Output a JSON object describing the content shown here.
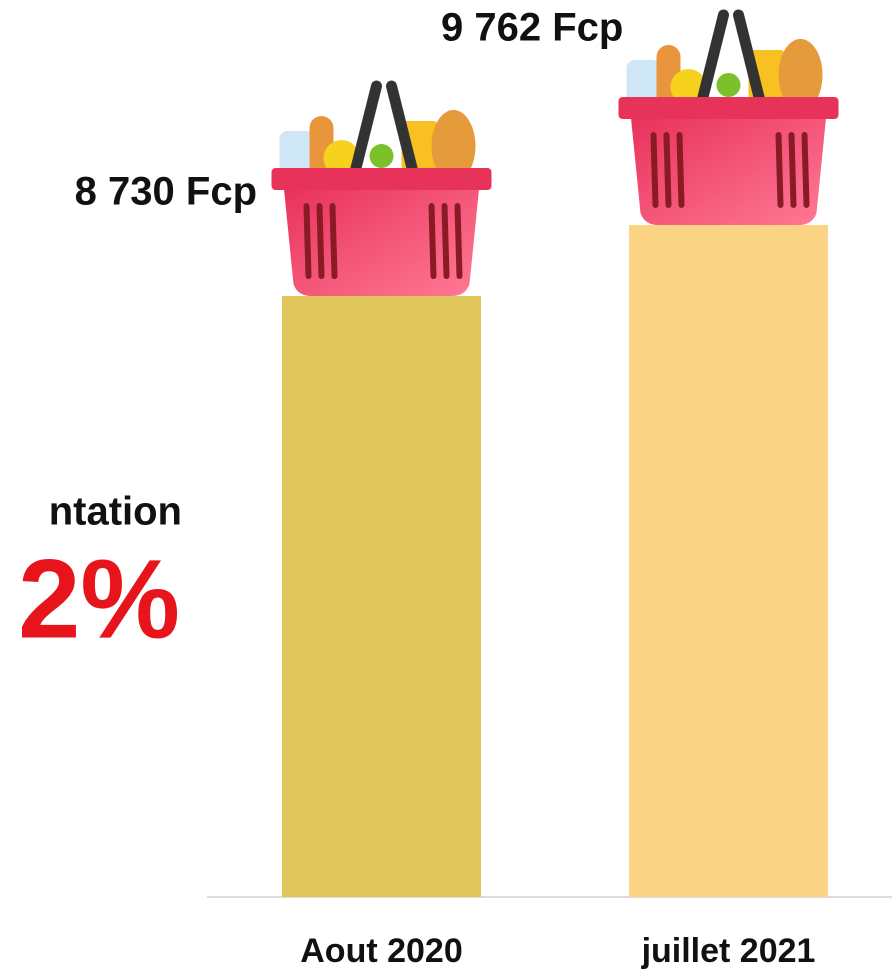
{
  "chart_data": {
    "type": "bar",
    "categories": [
      "Aout 2020",
      "juillet 2021"
    ],
    "values": [
      8730,
      9762
    ],
    "value_labels": [
      "8 730 Fcp",
      "9 762 Fcp"
    ],
    "colors": [
      "#e0c55a",
      "#fbd384"
    ],
    "annotations": [
      "ntation",
      "2%"
    ],
    "annotation_color": "#e8141b"
  }
}
